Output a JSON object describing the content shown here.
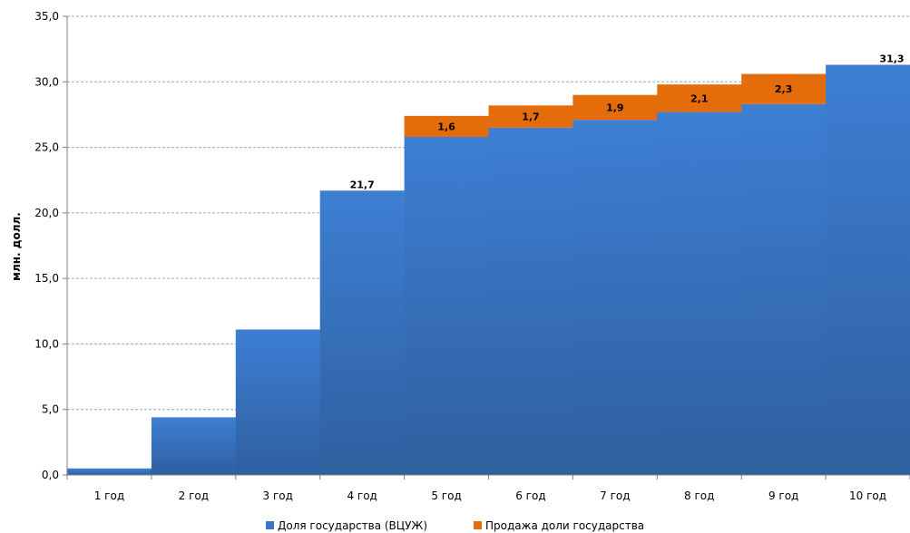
{
  "chart_data": {
    "type": "bar",
    "ylabel": "млн. долл.",
    "ylim": [
      0,
      35
    ],
    "yticks": [
      "0,0",
      "5,0",
      "10,0",
      "15,0",
      "20,0",
      "25,0",
      "30,0",
      "35,0"
    ],
    "grid": true,
    "legend_position": "bottom",
    "categories": [
      "1 год",
      "2 год",
      "3 год",
      "4 год",
      "5 год",
      "6 год",
      "7 год",
      "8 год",
      "9 год",
      "10 год"
    ],
    "series": [
      {
        "name": "Доля государства (ВЦУЖ)",
        "color": "#3a74c4",
        "values": [
          0.5,
          4.4,
          11.1,
          21.7,
          25.8,
          26.5,
          27.1,
          27.7,
          28.3,
          31.3
        ],
        "labels": [
          "",
          "",
          "",
          "21,7",
          "",
          "",
          "",
          "",
          "",
          "31,3"
        ]
      },
      {
        "name": "Продажа доли государства",
        "color": "#e46c0a",
        "values": [
          0,
          0,
          0,
          0,
          1.6,
          1.7,
          1.9,
          2.1,
          2.3,
          0
        ],
        "labels": [
          "",
          "",
          "",
          "",
          "1,6",
          "1,7",
          "1,9",
          "2,1",
          "2,3",
          ""
        ]
      }
    ]
  }
}
